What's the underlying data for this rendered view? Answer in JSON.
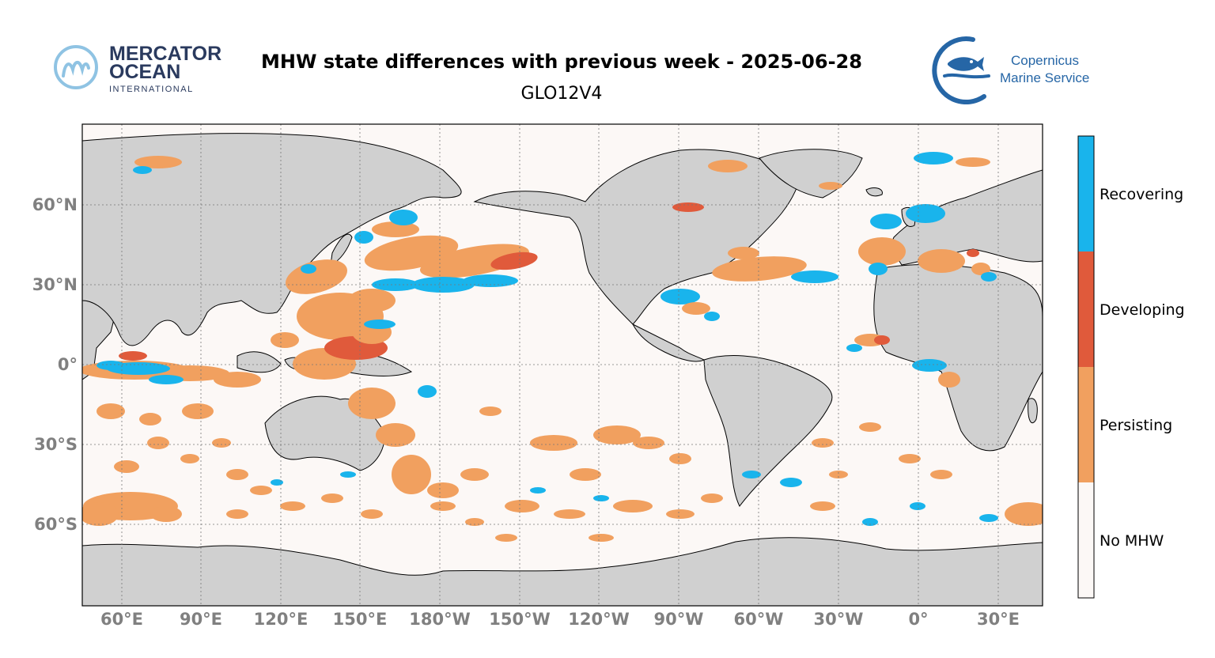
{
  "header": {
    "title": "MHW state differences with previous week - 2025-06-28",
    "subtitle": "GLO12V4"
  },
  "logos": {
    "mercator": {
      "line1": "MERCATOR",
      "line2": "OCEAN",
      "line3": "INTERNATIONAL"
    },
    "copernicus": {
      "line1": "Copernicus",
      "line2": "Marine Service"
    }
  },
  "map": {
    "lon_labels": [
      "60°E",
      "90°E",
      "120°E",
      "150°E",
      "180°W",
      "150°W",
      "120°W",
      "90°W",
      "60°W",
      "30°W",
      "0°",
      "30°E"
    ],
    "lat_labels": [
      "60°N",
      "30°N",
      "0°",
      "30°S",
      "60°S"
    ],
    "colors": {
      "ocean": "#fcf8f6",
      "land": "#d0d0d0",
      "persisting": "#f1a05f",
      "developing": "#e05a3b",
      "recovering": "#19b4ec",
      "no_mhw": "#fcf8f6"
    }
  },
  "legend": {
    "items": [
      {
        "label": "Recovering",
        "color": "#19b4ec"
      },
      {
        "label": "Developing",
        "color": "#e05a3b"
      },
      {
        "label": "Persisting",
        "color": "#f1a05f"
      },
      {
        "label": "No MHW",
        "color": "#fcf8f6"
      }
    ]
  }
}
